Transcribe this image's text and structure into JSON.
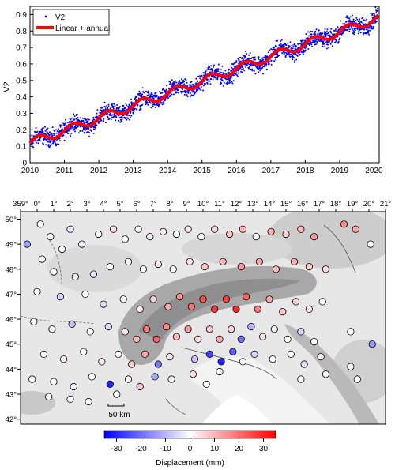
{
  "chart_data": [
    {
      "type": "scatter",
      "ylabel": "V2",
      "xlim": [
        2010,
        2020.15
      ],
      "ylim": [
        0,
        0.95
      ],
      "xticks": [
        2010,
        2011,
        2012,
        2013,
        2014,
        2015,
        2016,
        2017,
        2018,
        2019,
        2020
      ],
      "yticks": [
        0,
        0.1,
        0.2,
        0.3,
        0.4,
        0.5,
        0.6,
        0.7,
        0.8,
        0.9
      ],
      "legend_position": "top-left",
      "legend": [
        {
          "label": "V2",
          "marker": "dot",
          "color": "#0000ff"
        },
        {
          "label": "Linear + annual",
          "marker": "line",
          "color": "#ff0000"
        }
      ],
      "series": [
        {
          "name": "V2",
          "color": "#0000ff",
          "model": {
            "intercept": 0.12,
            "slope": 0.075,
            "annual_amplitude": 0.025,
            "phase_year": 0.25,
            "noise": 0.025
          }
        },
        {
          "name": "Linear + annual",
          "color": "#ff0000",
          "x": [
            2010.0,
            2010.25,
            2010.5,
            2010.75,
            2011.0,
            2011.25,
            2011.5,
            2011.75,
            2012.0,
            2012.25,
            2012.5,
            2012.75,
            2013.0,
            2013.25,
            2013.5,
            2013.75,
            2014.0,
            2014.25,
            2014.5,
            2014.75,
            2015.0,
            2015.25,
            2015.5,
            2015.75,
            2016.0,
            2016.25,
            2016.5,
            2016.75,
            2017.0,
            2017.25,
            2017.5,
            2017.75,
            2018.0,
            2018.25,
            2018.5,
            2018.75,
            2019.0,
            2019.25,
            2019.5,
            2019.75,
            2020.0,
            2020.1
          ],
          "y": [
            0.12,
            0.105,
            0.09,
            0.11,
            0.195,
            0.18,
            0.165,
            0.185,
            0.27,
            0.255,
            0.24,
            0.26,
            0.345,
            0.33,
            0.315,
            0.335,
            0.42,
            0.405,
            0.39,
            0.41,
            0.495,
            0.48,
            0.465,
            0.485,
            0.57,
            0.555,
            0.54,
            0.56,
            0.645,
            0.63,
            0.615,
            0.635,
            0.72,
            0.705,
            0.69,
            0.71,
            0.795,
            0.78,
            0.765,
            0.785,
            0.87,
            0.86
          ]
        }
      ]
    },
    {
      "type": "map-scatter",
      "xlim": [
        -1,
        21
      ],
      "ylim": [
        41.8,
        50.3
      ],
      "top_tick_labels": [
        "359°",
        "0°",
        "1°",
        "2°",
        "3°",
        "4°",
        "5°",
        "6°",
        "7°",
        "8°",
        "9°",
        "10°",
        "11°",
        "12°",
        "13°",
        "14°",
        "15°",
        "16°",
        "17°",
        "18°",
        "19°",
        "20°",
        "21°"
      ],
      "top_tick_values": [
        -1,
        0,
        1,
        2,
        3,
        4,
        5,
        6,
        7,
        8,
        9,
        10,
        11,
        12,
        13,
        14,
        15,
        16,
        17,
        18,
        19,
        20,
        21
      ],
      "lat_tick_labels": [
        "42°",
        "43°",
        "44°",
        "45°",
        "46°",
        "47°",
        "48°",
        "49°",
        "50°"
      ],
      "lat_tick_values": [
        42,
        43,
        44,
        45,
        46,
        47,
        48,
        49,
        50
      ],
      "scalebar_label": "50 km",
      "colorbar": {
        "label": "Displacement (mm)",
        "ticks": [
          "-30",
          "-20",
          "-10",
          "0",
          "10",
          "20",
          "30"
        ],
        "tick_values": [
          -30,
          -20,
          -10,
          0,
          10,
          20,
          30
        ],
        "range": [
          -35,
          35
        ],
        "colors": [
          "#0000ff",
          "#ffffff",
          "#ff0000"
        ]
      },
      "stations": [
        [
          0.2,
          49.8,
          0
        ],
        [
          0.8,
          49.3,
          2
        ],
        [
          2.0,
          49.6,
          -3
        ],
        [
          2.7,
          49.0,
          -2
        ],
        [
          1.5,
          48.8,
          0
        ],
        [
          0.3,
          48.4,
          1
        ],
        [
          -0.6,
          49.0,
          -14
        ],
        [
          3.7,
          49.4,
          0
        ],
        [
          4.6,
          49.6,
          4
        ],
        [
          5.3,
          49.2,
          0
        ],
        [
          6.1,
          49.6,
          0
        ],
        [
          6.8,
          49.3,
          -2
        ],
        [
          7.6,
          49.5,
          3
        ],
        [
          8.4,
          49.4,
          0
        ],
        [
          9.1,
          49.6,
          2
        ],
        [
          9.9,
          49.3,
          0
        ],
        [
          10.7,
          49.6,
          5
        ],
        [
          11.6,
          49.4,
          8
        ],
        [
          12.4,
          49.6,
          10
        ],
        [
          13.2,
          49.3,
          0
        ],
        [
          14.1,
          49.5,
          12
        ],
        [
          15.0,
          49.4,
          6
        ],
        [
          15.9,
          49.6,
          9
        ],
        [
          16.7,
          49.3,
          14
        ],
        [
          18.5,
          49.8,
          16
        ],
        [
          19.2,
          49.6,
          12
        ],
        [
          20.1,
          49.0,
          0
        ],
        [
          1.0,
          47.9,
          0
        ],
        [
          2.3,
          47.7,
          2
        ],
        [
          3.4,
          47.8,
          -3
        ],
        [
          4.4,
          48.1,
          0
        ],
        [
          5.5,
          48.3,
          1
        ],
        [
          6.4,
          48.0,
          0
        ],
        [
          7.3,
          48.2,
          3
        ],
        [
          8.2,
          48.0,
          0
        ],
        [
          9.2,
          48.3,
          4
        ],
        [
          10.1,
          48.1,
          8
        ],
        [
          11.2,
          48.3,
          10
        ],
        [
          12.3,
          48.1,
          14
        ],
        [
          13.4,
          48.3,
          12
        ],
        [
          14.4,
          48.0,
          9
        ],
        [
          15.5,
          48.3,
          11
        ],
        [
          16.4,
          48.1,
          7
        ],
        [
          17.4,
          48.0,
          5
        ],
        [
          0.0,
          47.1,
          0
        ],
        [
          1.4,
          46.9,
          -6
        ],
        [
          2.9,
          47.0,
          0
        ],
        [
          4.0,
          46.6,
          -4
        ],
        [
          5.2,
          46.8,
          0
        ],
        [
          6.2,
          46.4,
          3
        ],
        [
          7.0,
          46.8,
          6
        ],
        [
          7.9,
          46.5,
          12
        ],
        [
          8.6,
          46.9,
          15
        ],
        [
          9.3,
          46.5,
          20
        ],
        [
          10.0,
          46.8,
          24
        ],
        [
          10.7,
          46.4,
          28
        ],
        [
          11.4,
          46.8,
          26
        ],
        [
          12.0,
          46.4,
          30
        ],
        [
          12.6,
          46.9,
          22
        ],
        [
          13.3,
          46.4,
          18
        ],
        [
          14.0,
          46.8,
          12
        ],
        [
          14.8,
          46.3,
          8
        ],
        [
          15.6,
          46.7,
          6
        ],
        [
          16.4,
          46.4,
          3
        ],
        [
          17.2,
          46.7,
          0
        ],
        [
          -0.2,
          45.9,
          0
        ],
        [
          0.9,
          45.6,
          2
        ],
        [
          2.1,
          45.8,
          -8
        ],
        [
          3.2,
          45.5,
          0
        ],
        [
          4.3,
          45.7,
          -5
        ],
        [
          5.3,
          45.5,
          4
        ],
        [
          6.0,
          45.2,
          10
        ],
        [
          6.6,
          45.6,
          18
        ],
        [
          7.2,
          45.2,
          22
        ],
        [
          7.8,
          45.7,
          16
        ],
        [
          8.4,
          45.3,
          10
        ],
        [
          9.1,
          45.6,
          14
        ],
        [
          9.7,
          45.2,
          5
        ],
        [
          10.4,
          45.6,
          8
        ],
        [
          11.0,
          45.2,
          12
        ],
        [
          11.7,
          45.6,
          6
        ],
        [
          12.3,
          45.2,
          -20
        ],
        [
          12.9,
          45.7,
          -10
        ],
        [
          13.6,
          45.3,
          4
        ],
        [
          14.3,
          45.6,
          2
        ],
        [
          15.1,
          45.2,
          0
        ],
        [
          15.9,
          45.5,
          -6
        ],
        [
          16.7,
          45.1,
          0
        ],
        [
          18.9,
          45.5,
          0
        ],
        [
          20.2,
          45.0,
          -14
        ],
        [
          0.4,
          44.6,
          0
        ],
        [
          1.6,
          44.4,
          2
        ],
        [
          2.8,
          44.7,
          0
        ],
        [
          3.9,
          44.3,
          3
        ],
        [
          4.9,
          44.6,
          0
        ],
        [
          5.7,
          44.2,
          6
        ],
        [
          6.5,
          44.6,
          12
        ],
        [
          7.3,
          44.2,
          -18
        ],
        [
          8.0,
          44.5,
          4
        ],
        [
          9.5,
          44.4,
          -8
        ],
        [
          10.4,
          44.6,
          -26
        ],
        [
          11.1,
          44.3,
          -30
        ],
        [
          11.8,
          44.7,
          -22
        ],
        [
          12.4,
          44.3,
          0
        ],
        [
          13.1,
          44.6,
          -6
        ],
        [
          14.2,
          44.4,
          0
        ],
        [
          15.3,
          44.6,
          0
        ],
        [
          16.1,
          44.2,
          -4
        ],
        [
          17.1,
          44.5,
          2
        ],
        [
          18.9,
          44.1,
          0
        ],
        [
          -0.3,
          43.6,
          0
        ],
        [
          1.0,
          43.5,
          0
        ],
        [
          2.2,
          43.3,
          -2
        ],
        [
          3.3,
          43.7,
          0
        ],
        [
          4.4,
          43.4,
          -30
        ],
        [
          5.5,
          43.6,
          2
        ],
        [
          6.2,
          43.3,
          8
        ],
        [
          7.1,
          43.7,
          -12
        ],
        [
          8.1,
          43.6,
          0
        ],
        [
          9.4,
          43.8,
          5
        ],
        [
          10.2,
          43.4,
          0
        ],
        [
          11.0,
          43.9,
          0
        ],
        [
          15.9,
          43.6,
          0
        ],
        [
          17.4,
          43.8,
          0
        ],
        [
          19.3,
          43.6,
          0
        ],
        [
          0.7,
          42.9,
          0
        ],
        [
          2.0,
          42.8,
          0
        ],
        [
          3.1,
          42.7,
          0
        ],
        [
          4.8,
          43.0,
          0
        ]
      ]
    }
  ]
}
